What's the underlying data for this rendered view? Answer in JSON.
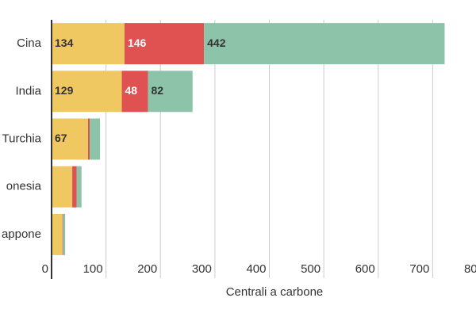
{
  "chart_data": {
    "type": "stacked-barh",
    "x_label": "Centrali a carbone",
    "categories": [
      "Cina",
      "India",
      "Turchia",
      "onesia",
      "appone"
    ],
    "series": [
      {
        "color": "#f0c862",
        "values": [
          134,
          129,
          67,
          38,
          20
        ]
      },
      {
        "color": "#e05252",
        "values": [
          146,
          48,
          3,
          8,
          1
        ]
      },
      {
        "color": "#8dc4a9",
        "values": [
          442,
          82,
          19,
          9,
          4
        ]
      }
    ],
    "xlim": [
      0,
      800
    ],
    "xticks": [
      0,
      100,
      200,
      300,
      400,
      500,
      600,
      700,
      800
    ],
    "grid": true
  }
}
